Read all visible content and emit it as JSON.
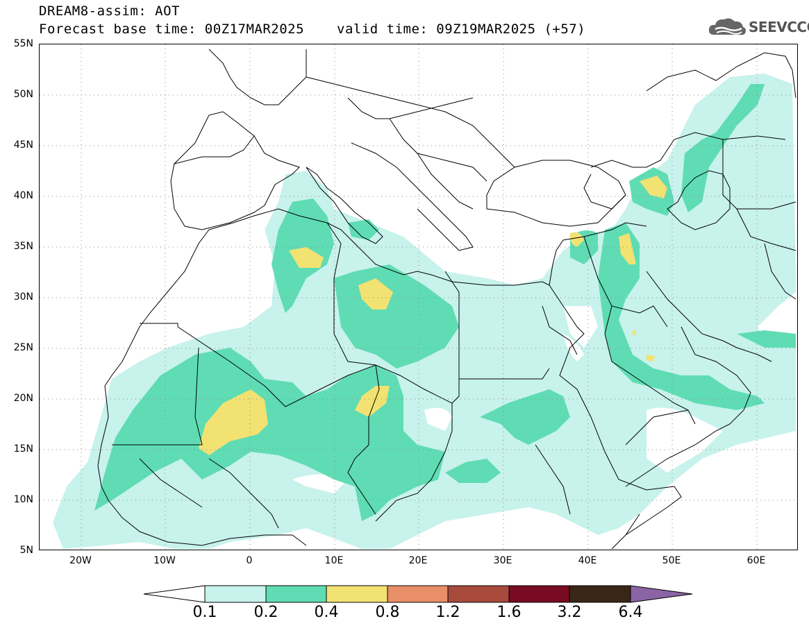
{
  "header": {
    "title": "DREAM8-assim: AOT",
    "base_time": "Forecast base time: 00Z17MAR2025",
    "valid_time": "valid time: 09Z19MAR2025 (+57)"
  },
  "logo": {
    "text": "SEEVCCC",
    "icon": "cloud-icon"
  },
  "map": {
    "lat_ticks": [
      "55N",
      "50N",
      "45N",
      "40N",
      "35N",
      "30N",
      "25N",
      "20N",
      "15N",
      "10N",
      "5N"
    ],
    "lon_ticks": [
      "20W",
      "10W",
      "0",
      "10E",
      "20E",
      "30E",
      "40E",
      "50E",
      "60E"
    ],
    "grid": "dotted"
  },
  "colorbar": {
    "labels": [
      "0.1",
      "0.2",
      "0.4",
      "0.8",
      "1.2",
      "1.6",
      "3.2",
      "6.4"
    ],
    "colors": [
      "#c8f2ec",
      "#5fdcb4",
      "#f2e272",
      "#e88e68",
      "#a84a3c",
      "#780a22",
      "#3a2616",
      "#8a64a4"
    ],
    "extend": "both"
  }
}
